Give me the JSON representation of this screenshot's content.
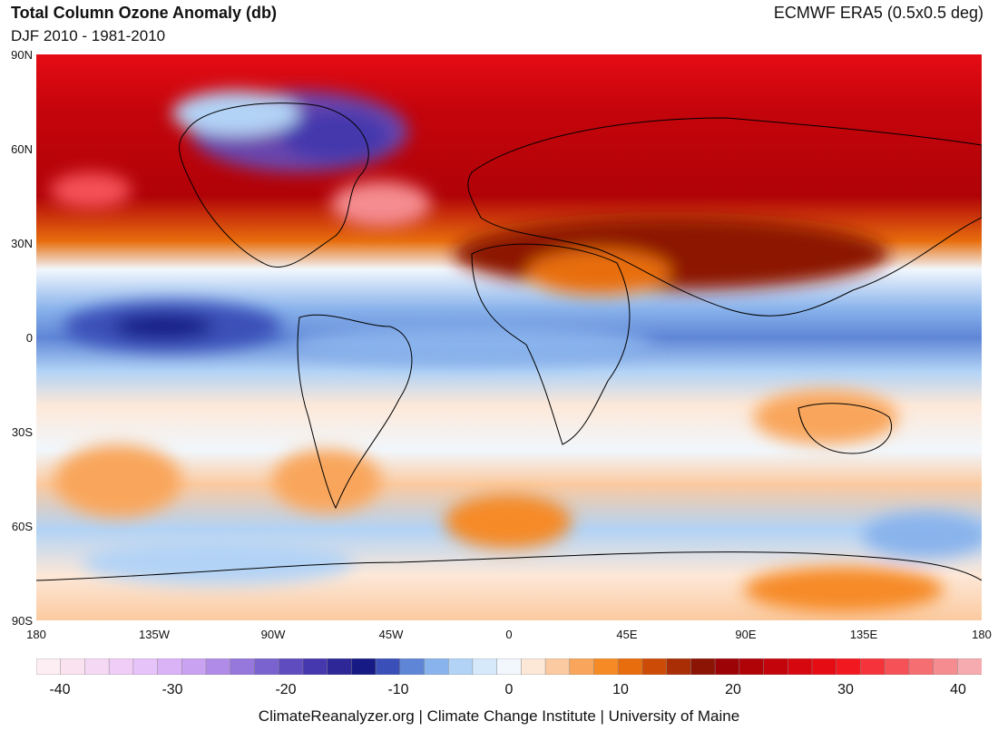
{
  "header": {
    "title": "Total Column Ozone Anomaly (db)",
    "subtitle": "DJF 2010 - 1981-2010",
    "source": "ECMWF ERA5 (0.5x0.5 deg)"
  },
  "map": {
    "lat_labels": [
      "90N",
      "60N",
      "30N",
      "0",
      "30S",
      "60S",
      "90S"
    ],
    "lon_labels": [
      "180",
      "135W",
      "90W",
      "45W",
      "0",
      "45E",
      "90E",
      "135E",
      "180"
    ]
  },
  "colorbar": {
    "tick_labels": [
      "-40",
      "-30",
      "-20",
      "-10",
      "0",
      "10",
      "20",
      "30",
      "40"
    ],
    "colors": [
      "#fdeef3",
      "#fbe2f1",
      "#f5d9f4",
      "#efcdf7",
      "#e6c3f8",
      "#dab3f7",
      "#c9a2f2",
      "#b18be8",
      "#9677dc",
      "#7b63cf",
      "#5f4cbf",
      "#4537ad",
      "#2d2797",
      "#161a84",
      "#3a50b8",
      "#5f86d6",
      "#89b3ec",
      "#b2d3f6",
      "#d6e9fb",
      "#f1f7fd",
      "#fde8d8",
      "#fbcaa0",
      "#f9a65c",
      "#f68a25",
      "#e86e0d",
      "#cc4c07",
      "#a92e06",
      "#8c1405",
      "#9b0306",
      "#b00308",
      "#c4040b",
      "#d6070e",
      "#e50c14",
      "#f2181f",
      "#f5333a",
      "#f55156",
      "#f56e72",
      "#f58c90",
      "#f5abaf"
    ]
  },
  "footer": {
    "credit": "ClimateReanalyzer.org | Climate Change Institute | University of Maine"
  }
}
